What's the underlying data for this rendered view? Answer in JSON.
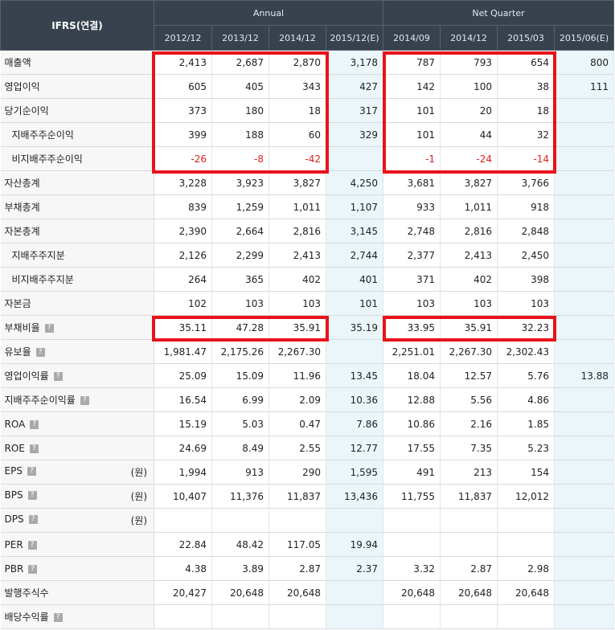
{
  "header": {
    "label": "IFRS(연결)",
    "group_annual": "Annual",
    "group_quarter": "Net Quarter",
    "columns": [
      "2012/12",
      "2013/12",
      "2014/12",
      "2015/12(E)",
      "2014/09",
      "2014/12",
      "2015/03",
      "2015/06(E)"
    ]
  },
  "rows": [
    {
      "label": "매출액",
      "sub": false,
      "help": false,
      "unit": "",
      "values": [
        "2,413",
        "2,687",
        "2,870",
        "3,178",
        "787",
        "793",
        "654",
        "800"
      ]
    },
    {
      "label": "영업이익",
      "sub": false,
      "help": false,
      "unit": "",
      "values": [
        "605",
        "405",
        "343",
        "427",
        "142",
        "100",
        "38",
        "111"
      ]
    },
    {
      "label": "당기순이익",
      "sub": false,
      "help": false,
      "unit": "",
      "values": [
        "373",
        "180",
        "18",
        "317",
        "101",
        "20",
        "18",
        ""
      ]
    },
    {
      "label": "지배주주순이익",
      "sub": true,
      "help": false,
      "unit": "",
      "values": [
        "399",
        "188",
        "60",
        "329",
        "101",
        "44",
        "32",
        ""
      ]
    },
    {
      "label": "비지배주주순이익",
      "sub": true,
      "help": false,
      "unit": "",
      "values": [
        "-26",
        "-8",
        "-42",
        "",
        "-1",
        "-24",
        "-14",
        ""
      ]
    },
    {
      "label": "자산총계",
      "sub": false,
      "help": false,
      "unit": "",
      "values": [
        "3,228",
        "3,923",
        "3,827",
        "4,250",
        "3,681",
        "3,827",
        "3,766",
        ""
      ]
    },
    {
      "label": "부채총계",
      "sub": false,
      "help": false,
      "unit": "",
      "values": [
        "839",
        "1,259",
        "1,011",
        "1,107",
        "933",
        "1,011",
        "918",
        ""
      ]
    },
    {
      "label": "자본총계",
      "sub": false,
      "help": false,
      "unit": "",
      "values": [
        "2,390",
        "2,664",
        "2,816",
        "3,145",
        "2,748",
        "2,816",
        "2,848",
        ""
      ]
    },
    {
      "label": "지배주주지분",
      "sub": true,
      "help": false,
      "unit": "",
      "values": [
        "2,126",
        "2,299",
        "2,413",
        "2,744",
        "2,377",
        "2,413",
        "2,450",
        ""
      ]
    },
    {
      "label": "비지배주주지분",
      "sub": true,
      "help": false,
      "unit": "",
      "values": [
        "264",
        "365",
        "402",
        "401",
        "371",
        "402",
        "398",
        ""
      ]
    },
    {
      "label": "자본금",
      "sub": false,
      "help": false,
      "unit": "",
      "values": [
        "102",
        "103",
        "103",
        "101",
        "103",
        "103",
        "103",
        ""
      ]
    },
    {
      "label": "부채비율",
      "sub": false,
      "help": true,
      "unit": "",
      "values": [
        "35.11",
        "47.28",
        "35.91",
        "35.19",
        "33.95",
        "35.91",
        "32.23",
        ""
      ]
    },
    {
      "label": "유보율",
      "sub": false,
      "help": true,
      "unit": "",
      "values": [
        "1,981.47",
        "2,175.26",
        "2,267.30",
        "",
        "2,251.01",
        "2,267.30",
        "2,302.43",
        ""
      ]
    },
    {
      "label": "영업이익률",
      "sub": false,
      "help": true,
      "unit": "",
      "values": [
        "25.09",
        "15.09",
        "11.96",
        "13.45",
        "18.04",
        "12.57",
        "5.76",
        "13.88"
      ]
    },
    {
      "label": "지배주주순이익률",
      "sub": false,
      "help": true,
      "unit": "",
      "values": [
        "16.54",
        "6.99",
        "2.09",
        "10.36",
        "12.88",
        "5.56",
        "4.86",
        ""
      ]
    },
    {
      "label": "ROA",
      "sub": false,
      "help": true,
      "unit": "",
      "values": [
        "15.19",
        "5.03",
        "0.47",
        "7.86",
        "10.86",
        "2.16",
        "1.85",
        ""
      ]
    },
    {
      "label": "ROE",
      "sub": false,
      "help": true,
      "unit": "",
      "values": [
        "24.69",
        "8.49",
        "2.55",
        "12.77",
        "17.55",
        "7.35",
        "5.23",
        ""
      ]
    },
    {
      "label": "EPS",
      "sub": false,
      "help": true,
      "unit": "(원)",
      "values": [
        "1,994",
        "913",
        "290",
        "1,595",
        "491",
        "213",
        "154",
        ""
      ]
    },
    {
      "label": "BPS",
      "sub": false,
      "help": true,
      "unit": "(원)",
      "values": [
        "10,407",
        "11,376",
        "11,837",
        "13,436",
        "11,755",
        "11,837",
        "12,012",
        ""
      ]
    },
    {
      "label": "DPS",
      "sub": false,
      "help": true,
      "unit": "(원)",
      "values": [
        "",
        "",
        "",
        "",
        "",
        "",
        "",
        ""
      ]
    },
    {
      "label": "PER",
      "sub": false,
      "help": true,
      "unit": "",
      "values": [
        "22.84",
        "48.42",
        "117.05",
        "19.94",
        "",
        "",
        "",
        ""
      ]
    },
    {
      "label": "PBR",
      "sub": false,
      "help": true,
      "unit": "",
      "values": [
        "4.38",
        "3.89",
        "2.87",
        "2.37",
        "3.32",
        "2.87",
        "2.98",
        ""
      ]
    },
    {
      "label": "발행주식수",
      "sub": false,
      "help": false,
      "unit": "",
      "values": [
        "20,427",
        "20,648",
        "20,648",
        "",
        "20,648",
        "20,648",
        "20,648",
        ""
      ]
    },
    {
      "label": "배당수익률",
      "sub": false,
      "help": true,
      "unit": "",
      "values": [
        "",
        "",
        "",
        "",
        "",
        "",
        "",
        ""
      ]
    }
  ],
  "help_icon": {
    "name": "help-icon",
    "glyph": "?"
  },
  "colors": {
    "header_bg": "#37424e",
    "estimate_bg": "#eaf6fa",
    "negative": "#e02020",
    "highlight": "#e8121b"
  }
}
